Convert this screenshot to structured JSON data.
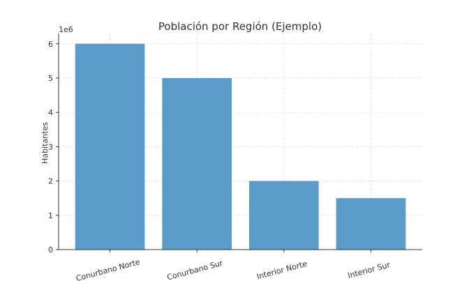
{
  "chart_data": {
    "type": "bar",
    "title": "Población por Región (Ejemplo)",
    "xlabel": "",
    "ylabel": "Habitantes",
    "y_offset_label": "1e6",
    "categories": [
      "Conurbano Norte",
      "Conurbano Sur",
      "Interior Norte",
      "Interior Sur"
    ],
    "values": [
      6000000,
      5000000,
      2000000,
      1500000
    ],
    "ylim": [
      0,
      6300000
    ],
    "yticks": [
      0,
      1000000,
      2000000,
      3000000,
      4000000,
      5000000,
      6000000
    ],
    "ytick_labels": [
      "0",
      "1",
      "2",
      "3",
      "4",
      "5",
      "6"
    ],
    "grid": true,
    "bar_color": "#5b9bc8"
  }
}
